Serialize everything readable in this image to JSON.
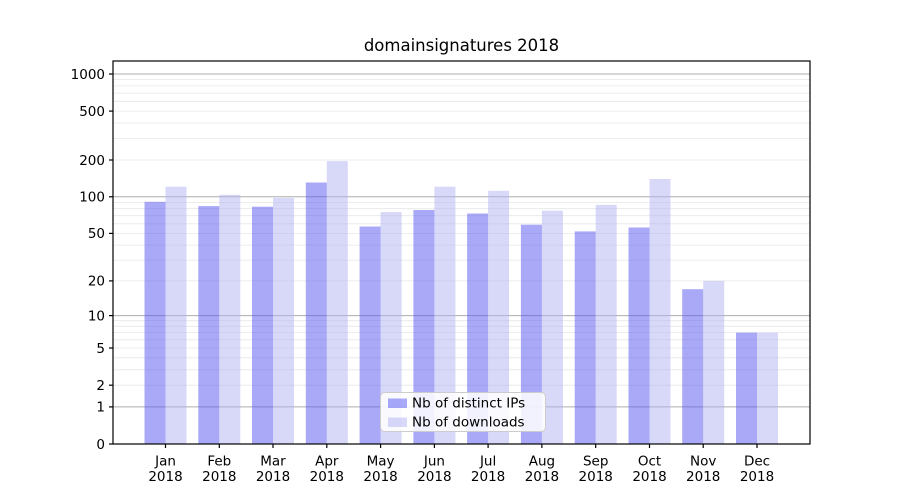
{
  "title": "domainsignatures 2018",
  "chart_data": {
    "type": "bar",
    "title": "domainsignatures 2018",
    "categories": [
      "Jan 2018",
      "Feb 2018",
      "Mar 2018",
      "Apr 2018",
      "May 2018",
      "Jun 2018",
      "Jul 2018",
      "Aug 2018",
      "Sep 2018",
      "Oct 2018",
      "Nov 2018",
      "Dec 2018"
    ],
    "series": [
      {
        "name": "Nb of distinct IPs",
        "color": "rgba(83,83,241,0.5)",
        "values": [
          91,
          84,
          83,
          131,
          57,
          78,
          73,
          59,
          52,
          56,
          17,
          7
        ]
      },
      {
        "name": "Nb of downloads",
        "color": "rgba(177,177,241,0.5)",
        "values": [
          121,
          104,
          98,
          196,
          75,
          121,
          112,
          77,
          86,
          140,
          20,
          7
        ]
      }
    ],
    "y_scale": "log1p",
    "y_ticks": [
      0,
      1,
      2,
      5,
      10,
      20,
      50,
      100,
      200,
      500,
      1000
    ],
    "ylim": [
      0,
      1275
    ],
    "xlabel": "",
    "ylabel": "",
    "grid": true,
    "legend_position": "lower-center-inside"
  },
  "colors": {
    "background": "#ffffff",
    "axis": "#000000",
    "grid_minor": "#e7e7e7",
    "grid_major": "#adadad",
    "legend_border": "#cccccc",
    "legend_background": "rgba(255,255,255,0.85)"
  }
}
